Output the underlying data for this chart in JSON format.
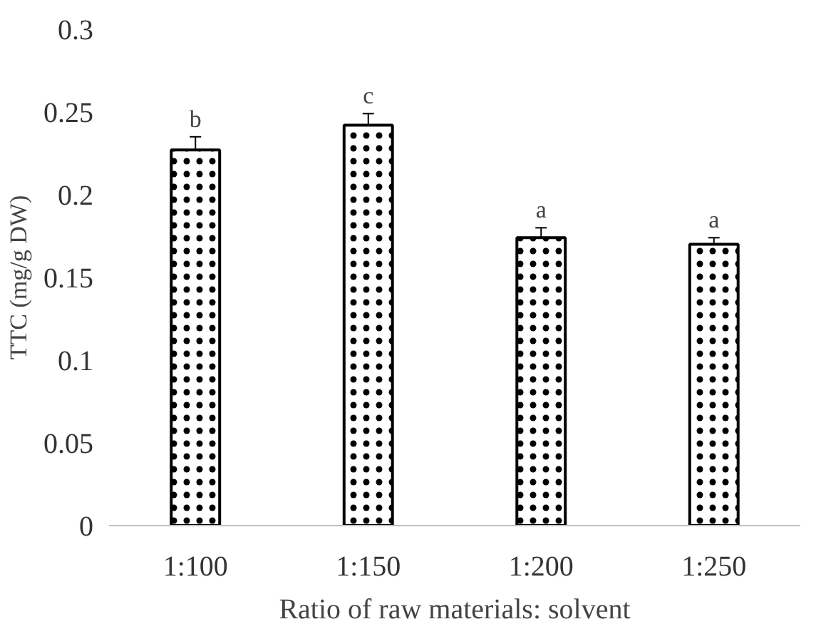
{
  "chart_data": {
    "type": "bar",
    "xlabel": "Ratio of raw materials: solvent",
    "ylabel": "TTC (mg/g DW)",
    "categories": [
      "1:100",
      "1:150",
      "1:200",
      "1:250"
    ],
    "values": [
      0.227,
      0.242,
      0.174,
      0.17
    ],
    "errors": [
      0.008,
      0.007,
      0.006,
      0.004
    ],
    "color": "#ffffff",
    "ylim": [
      0,
      0.3
    ],
    "yticks": [
      0,
      0.05,
      0.1,
      0.15,
      0.2,
      0.25,
      0.3
    ],
    "grid": false,
    "annotations": [
      {
        "text": "b",
        "x": "1:100",
        "y": 0.235
      },
      {
        "text": "c",
        "x": "1:150",
        "y": 0.249
      },
      {
        "text": "a",
        "x": "1:200",
        "y": 0.18
      },
      {
        "text": "a",
        "x": "1:250",
        "y": 0.174
      }
    ]
  }
}
